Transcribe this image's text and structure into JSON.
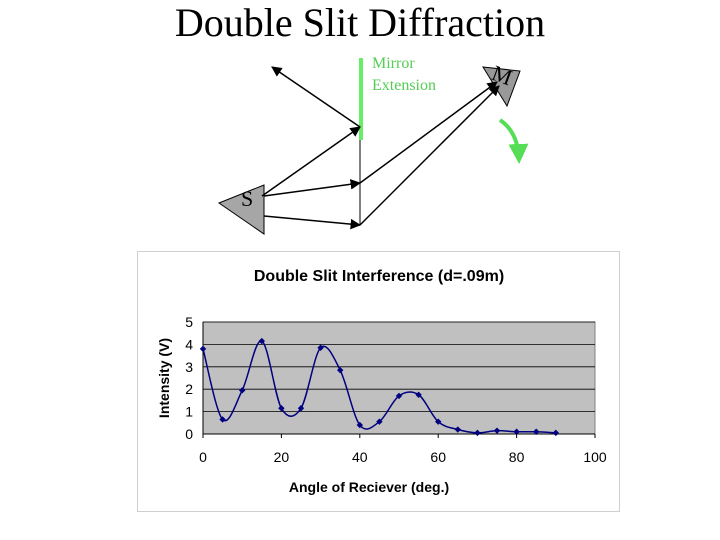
{
  "slide": {
    "title": "Double Slit Diffraction"
  },
  "diagram": {
    "mirror_label_line1": "Mirror",
    "mirror_label_line2": "Extension",
    "receiver_label": "M",
    "source_label": "S",
    "colors": {
      "mirror": "#66ee66",
      "receiver_fill": "#999999",
      "source_fill": "#a6a6a6",
      "rotation_arrow": "#55dd55",
      "mirror_label": "#55cc55"
    }
  },
  "chart_data": {
    "type": "line",
    "title": "Double Slit Interference (d=.09m)",
    "xlabel": "Angle of Reciever (deg.)",
    "ylabel": "Intensity (V)",
    "xlim": [
      0,
      100
    ],
    "ylim": [
      0,
      5
    ],
    "xticks": [
      0,
      20,
      40,
      60,
      80,
      100
    ],
    "yticks": [
      0,
      1,
      2,
      3,
      4,
      5
    ],
    "grid": true,
    "smoothed": true,
    "plot_background": "#c0c0c0",
    "series_color": "#000080",
    "points": [
      [
        0,
        3.8
      ],
      [
        5,
        0.65
      ],
      [
        10,
        1.95
      ],
      [
        15,
        4.15
      ],
      [
        20,
        1.15
      ],
      [
        25,
        1.15
      ],
      [
        30,
        3.85
      ],
      [
        35,
        2.85
      ],
      [
        40,
        0.4
      ],
      [
        45,
        0.55
      ],
      [
        50,
        1.7
      ],
      [
        55,
        1.75
      ],
      [
        60,
        0.55
      ],
      [
        65,
        0.2
      ],
      [
        70,
        0.05
      ],
      [
        75,
        0.15
      ],
      [
        80,
        0.1
      ],
      [
        85,
        0.1
      ],
      [
        90,
        0.05
      ]
    ]
  }
}
